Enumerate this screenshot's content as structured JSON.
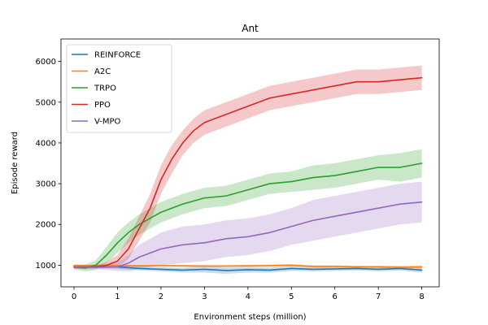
{
  "chart_data": {
    "type": "line",
    "title": "Ant",
    "xlabel": "Environment steps (million)",
    "ylabel": "Episode reward",
    "xlim": [
      -0.3,
      8.4
    ],
    "ylim": [
      470,
      6550
    ],
    "xticks": [
      0,
      1,
      2,
      3,
      4,
      5,
      6,
      7,
      8
    ],
    "yticks": [
      1000,
      2000,
      3000,
      4000,
      5000,
      6000
    ],
    "grid": false,
    "legend": "upper-left",
    "series": [
      {
        "name": "REINFORCE",
        "color": "#1f77b4",
        "x": [
          0,
          0.5,
          1,
          1.5,
          2,
          2.5,
          3,
          3.5,
          4,
          4.5,
          5,
          5.5,
          6,
          6.5,
          7,
          7.5,
          8
        ],
        "y": [
          980,
          970,
          960,
          920,
          900,
          880,
          900,
          870,
          890,
          880,
          920,
          900,
          910,
          920,
          900,
          920,
          880
        ],
        "band": [
          40,
          40,
          50,
          50,
          50,
          60,
          80,
          80,
          70,
          60,
          60,
          50,
          50,
          50,
          50,
          50,
          60
        ]
      },
      {
        "name": "A2C",
        "color": "#ff7f0e",
        "x": [
          0,
          0.5,
          1,
          1.5,
          2,
          2.5,
          3,
          3.5,
          4,
          4.5,
          5,
          5.5,
          6,
          6.5,
          7,
          7.5,
          8
        ],
        "y": [
          990,
          990,
          985,
          985,
          990,
          985,
          980,
          980,
          985,
          990,
          1000,
          970,
          970,
          960,
          960,
          950,
          960
        ],
        "band": [
          20,
          20,
          20,
          20,
          20,
          20,
          20,
          20,
          25,
          30,
          30,
          30,
          30,
          30,
          30,
          40,
          40
        ]
      },
      {
        "name": "TRPO",
        "color": "#2ca02c",
        "x": [
          0,
          0.25,
          0.5,
          0.75,
          1,
          1.25,
          1.5,
          1.75,
          2,
          2.5,
          3,
          3.5,
          4,
          4.5,
          5,
          5.5,
          6,
          6.5,
          7,
          7.5,
          8
        ],
        "y": [
          950,
          930,
          1000,
          1250,
          1550,
          1800,
          2000,
          2150,
          2300,
          2500,
          2650,
          2700,
          2850,
          3000,
          3050,
          3150,
          3200,
          3300,
          3400,
          3400,
          3500
        ],
        "band": [
          50,
          80,
          120,
          200,
          250,
          250,
          250,
          250,
          250,
          250,
          250,
          250,
          250,
          250,
          250,
          300,
          300,
          300,
          300,
          350,
          350
        ]
      },
      {
        "name": "PPO",
        "color": "#d62728",
        "x": [
          0,
          0.25,
          0.5,
          0.75,
          1,
          1.25,
          1.5,
          1.75,
          2,
          2.25,
          2.5,
          2.75,
          3,
          3.5,
          4,
          4.5,
          5,
          5.5,
          6,
          6.5,
          7,
          7.5,
          8
        ],
        "y": [
          950,
          950,
          960,
          1000,
          1100,
          1400,
          1900,
          2400,
          3100,
          3600,
          4000,
          4300,
          4500,
          4700,
          4900,
          5100,
          5200,
          5300,
          5400,
          5500,
          5500,
          5550,
          5600
        ],
        "band": [
          30,
          30,
          40,
          80,
          150,
          250,
          300,
          350,
          350,
          350,
          300,
          300,
          300,
          300,
          300,
          300,
          300,
          300,
          300,
          300,
          300,
          300,
          300
        ]
      },
      {
        "name": "V-MPO",
        "color": "#9467bd",
        "x": [
          0,
          0.5,
          1,
          1.25,
          1.5,
          2,
          2.5,
          3,
          3.5,
          4,
          4.5,
          5,
          5.5,
          6,
          6.5,
          7,
          7.5,
          8
        ],
        "y": [
          950,
          950,
          960,
          1050,
          1200,
          1400,
          1500,
          1550,
          1650,
          1700,
          1800,
          1950,
          2100,
          2200,
          2300,
          2400,
          2500,
          2550
        ],
        "band": [
          50,
          50,
          100,
          200,
          300,
          400,
          450,
          450,
          450,
          450,
          450,
          450,
          500,
          500,
          500,
          500,
          500,
          500
        ]
      }
    ]
  }
}
